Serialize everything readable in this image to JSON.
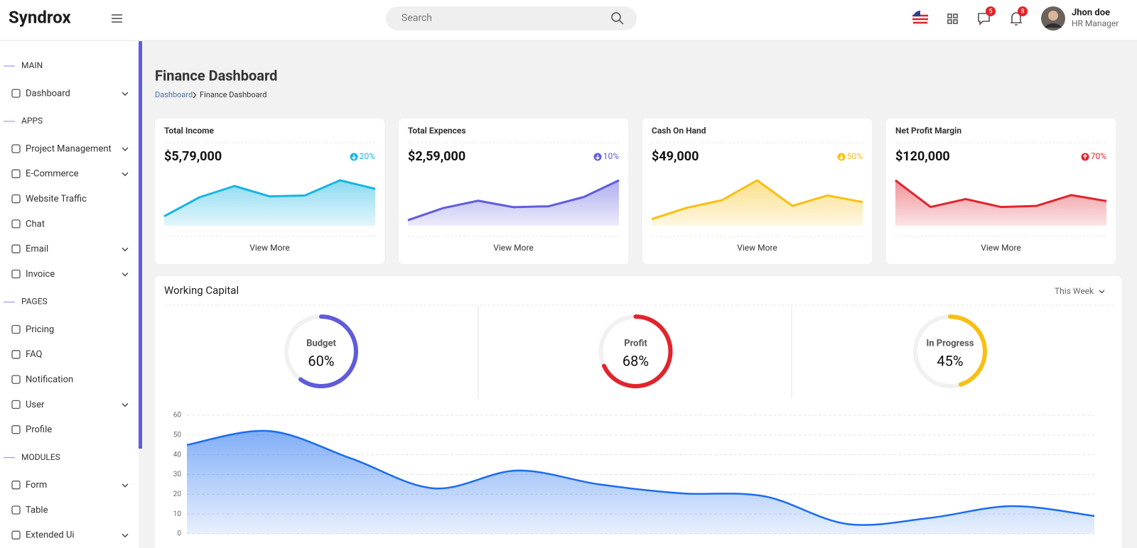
{
  "header": {
    "brand": "Syndrox",
    "search_placeholder": "Search",
    "message_count": 5,
    "notification_count": 8,
    "user_name": "Jhon doe",
    "user_role": "HR Manager"
  },
  "sidebar": [
    {
      "section": "MAIN",
      "items": [
        {
          "label": "Dashboard",
          "submenu": true
        }
      ]
    },
    {
      "section": "APPS",
      "items": [
        {
          "label": "Project Management",
          "submenu": true
        },
        {
          "label": "E-Commerce",
          "submenu": true
        },
        {
          "label": "Website Traffic",
          "submenu": false
        },
        {
          "label": "Chat",
          "submenu": false
        },
        {
          "label": "Email",
          "submenu": true
        },
        {
          "label": "Invoice",
          "submenu": true
        }
      ]
    },
    {
      "section": "PAGES",
      "items": [
        {
          "label": "Pricing",
          "submenu": false
        },
        {
          "label": "FAQ",
          "submenu": false
        },
        {
          "label": "Notification",
          "submenu": false
        },
        {
          "label": "User",
          "submenu": true
        },
        {
          "label": "Profile",
          "submenu": false
        }
      ]
    },
    {
      "section": "MODULES",
      "items": [
        {
          "label": "Form",
          "submenu": true
        },
        {
          "label": "Table",
          "submenu": false
        },
        {
          "label": "Extended Ui",
          "submenu": true
        }
      ]
    }
  ],
  "page": {
    "title": "Finance Dashboard",
    "breadcrumb": [
      "Dashboard",
      "Finance Dashboard"
    ]
  },
  "cards": [
    {
      "title": "Total Income",
      "value": "$5,79,000",
      "change": "20%",
      "direction": "down",
      "color": "#17b5e3",
      "sparkline": [
        10,
        30,
        42,
        31,
        32,
        48,
        39
      ],
      "link": "View More"
    },
    {
      "title": "Total Expences",
      "value": "$2,59,000",
      "change": "10%",
      "direction": "down",
      "color": "#605cdf",
      "sparkline": [
        6,
        19,
        27,
        20,
        21,
        31,
        49
      ],
      "link": "View More"
    },
    {
      "title": "Cash On Hand",
      "value": "$49,000",
      "change": "50%",
      "direction": "down",
      "color": "#f8bf12",
      "sparkline": [
        7,
        19,
        27,
        48,
        21,
        32,
        25
      ],
      "link": "View More"
    },
    {
      "title": "Net Profit Margin",
      "value": "$120,000",
      "change": "70%",
      "direction": "up",
      "color": "#e1242d",
      "sparkline": [
        46,
        19,
        27,
        19,
        20,
        31,
        25
      ],
      "link": "View More"
    }
  ],
  "working_capital": {
    "title": "Working Capital",
    "period": "This Week",
    "gauges": [
      {
        "label": "Budget",
        "value": 60,
        "value_label": "60%",
        "color": "#5f5bdc"
      },
      {
        "label": "Profit",
        "value": 68,
        "value_label": "68%",
        "color": "#e1242d"
      },
      {
        "label": "In Progress",
        "value": 45,
        "value_label": "45%",
        "color": "#f8bf12"
      }
    ],
    "chart": {
      "type": "area",
      "color": "#1a6cf0",
      "values": [
        45,
        52,
        38,
        23,
        32,
        25,
        20.5,
        19,
        5,
        8,
        14,
        9
      ],
      "ylim": [
        0,
        60
      ],
      "yticks": [
        0,
        10,
        20,
        30,
        40,
        50,
        60
      ],
      "grid": true
    }
  }
}
